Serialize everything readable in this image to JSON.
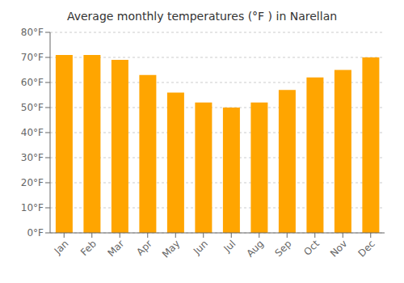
{
  "chart_data": {
    "type": "bar",
    "title": "Average monthly temperatures (°F ) in Narellan",
    "categories": [
      "Jan",
      "Feb",
      "Mar",
      "Apr",
      "May",
      "Jun",
      "Jul",
      "Aug",
      "Sep",
      "Oct",
      "Nov",
      "Dec"
    ],
    "values": [
      71,
      71,
      69,
      63,
      56,
      52,
      50,
      52,
      57,
      62,
      65,
      70
    ],
    "color": "#FFA500",
    "ylim": [
      0,
      80
    ],
    "yticks": [
      {
        "value": 0,
        "label": "0°F"
      },
      {
        "value": 10,
        "label": "10°F"
      },
      {
        "value": 20,
        "label": "20°F"
      },
      {
        "value": 30,
        "label": "30°F"
      },
      {
        "value": 40,
        "label": "40°F"
      },
      {
        "value": 50,
        "label": "50°F"
      },
      {
        "value": 60,
        "label": "60°F"
      },
      {
        "value": 70,
        "label": "70°F"
      },
      {
        "value": 80,
        "label": "80°F"
      }
    ],
    "grid": true
  }
}
